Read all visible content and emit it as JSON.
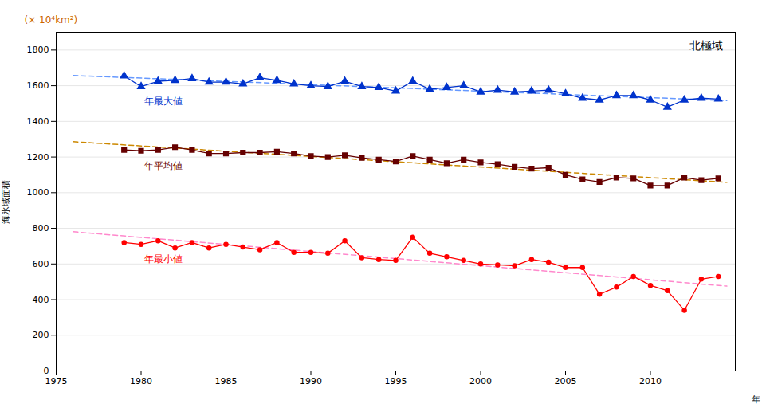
{
  "chart_data": {
    "type": "line",
    "title": "北極域",
    "annotations": [
      "(× 10⁴km²)"
    ],
    "xlabel": "年",
    "ylabel": "海氷域面積",
    "x": [
      1979,
      1980,
      1981,
      1982,
      1983,
      1984,
      1985,
      1986,
      1987,
      1988,
      1989,
      1990,
      1991,
      1992,
      1993,
      1994,
      1995,
      1996,
      1997,
      1998,
      1999,
      2000,
      2001,
      2002,
      2003,
      2004,
      2005,
      2006,
      2007,
      2008,
      2009,
      2010,
      2011,
      2012,
      2013,
      2014
    ],
    "series": [
      {
        "type": "line",
        "color": "#6699ff",
        "line_style": "dashed",
        "x": [
          1976,
          2014.5
        ],
        "values": [
          1657.245,
          1516.871
        ]
      },
      {
        "type": "line",
        "color": "#cc8800",
        "line_style": "dashed",
        "x": [
          1976,
          2014.5
        ],
        "values": [
          1285.961,
          1058.008
        ]
      },
      {
        "type": "line",
        "color": "#ff88cc",
        "line_style": "dashed",
        "x": [
          1976,
          2014.5
        ],
        "values": [
          780.882,
          475.607
        ]
      },
      {
        "name": "年最大値",
        "type": "line",
        "color": "#0033cc",
        "marker": "triangle",
        "line_style": "solid",
        "values": [
          1655,
          1595,
          1625,
          1630,
          1640,
          1620,
          1620,
          1610,
          1645,
          1630,
          1610,
          1600,
          1595,
          1625,
          1595,
          1590,
          1570,
          1625,
          1580,
          1590,
          1600,
          1565,
          1575,
          1565,
          1570,
          1575,
          1555,
          1530,
          1520,
          1545,
          1545,
          1520,
          1480,
          1520,
          1530,
          1525
        ]
      },
      {
        "name": "年平均値",
        "type": "line",
        "color": "#660000",
        "marker": "square",
        "line_style": "solid",
        "values": [
          1240,
          1235,
          1240,
          1255,
          1240,
          1220,
          1220,
          1225,
          1225,
          1230,
          1220,
          1205,
          1200,
          1210,
          1195,
          1185,
          1175,
          1205,
          1185,
          1165,
          1185,
          1170,
          1160,
          1145,
          1135,
          1140,
          1100,
          1075,
          1060,
          1085,
          1080,
          1040,
          1040,
          1085,
          1070,
          1080
        ]
      },
      {
        "name": "年最小値",
        "type": "line",
        "color": "#ff0000",
        "marker": "circle",
        "line_style": "solid",
        "values": [
          720,
          710,
          730,
          690,
          720,
          690,
          710,
          695,
          680,
          720,
          665,
          665,
          660,
          730,
          635,
          625,
          620,
          750,
          660,
          640,
          620,
          600,
          595,
          590,
          625,
          610,
          580,
          580,
          430,
          470,
          530,
          480,
          450,
          340,
          515,
          530
        ]
      }
    ],
    "xlim": [
      1975,
      2015
    ],
    "xticks": [
      1975,
      1980,
      1985,
      1990,
      1995,
      2000,
      2005,
      2010
    ],
    "ylim": [
      0,
      1900
    ],
    "yticks": [
      0,
      200,
      400,
      600,
      800,
      1000,
      1200,
      1400,
      1600,
      1800
    ],
    "grid": true
  }
}
